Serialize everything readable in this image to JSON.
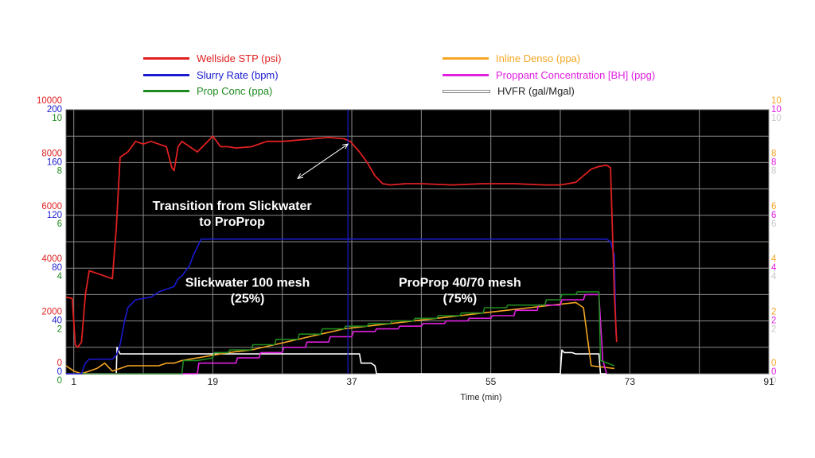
{
  "legend": [
    {
      "key": "stp",
      "label": "Wellside STP (psi)",
      "color": "#e02020"
    },
    {
      "key": "rate",
      "label": "Slurry Rate (bpm)",
      "color": "#1a1ad0"
    },
    {
      "key": "conc",
      "label": "Prop Conc (ppa)",
      "color": "#1f8a1f"
    },
    {
      "key": "denso",
      "label": "Inline Denso (ppa)",
      "color": "#f5a623"
    },
    {
      "key": "bh",
      "label": "Proppant Concentration [BH] (ppg)",
      "color": "#e020e0"
    },
    {
      "key": "hvfr",
      "label": "HVFR (gal/Mgal)",
      "color": "#ffffff"
    }
  ],
  "chart_data": {
    "type": "line",
    "xlabel": "Time (min)",
    "xlim": [
      0,
      91
    ],
    "x_ticks": [
      "1",
      "19",
      "37",
      "55",
      "73",
      "91"
    ],
    "x_tick_values": [
      1,
      19,
      37,
      55,
      73,
      91
    ],
    "grid": true,
    "background": "#000000",
    "left_axes": [
      {
        "key": "stp",
        "color": "#e02020",
        "ylim": [
          0,
          10000
        ],
        "ticks": [
          "0",
          "2000",
          "4000",
          "6000",
          "8000",
          "10000"
        ]
      },
      {
        "key": "rate",
        "color": "#1a1ad0",
        "ylim": [
          0,
          200
        ],
        "ticks": [
          "0",
          "40",
          "80",
          "120",
          "160",
          "200"
        ]
      },
      {
        "key": "conc",
        "color": "#1f8a1f",
        "ylim": [
          0,
          10
        ],
        "ticks": [
          "0",
          "2",
          "4",
          "6",
          "8",
          "10"
        ]
      }
    ],
    "right_axes": [
      {
        "key": "denso",
        "color": "#f5a623",
        "ylim": [
          0,
          10
        ],
        "ticks": [
          "0",
          "2",
          "4",
          "6",
          "8",
          "10"
        ]
      },
      {
        "key": "bh",
        "color": "#e020e0",
        "ylim": [
          0,
          10
        ],
        "ticks": [
          "0",
          "2",
          "4",
          "6",
          "8",
          "10"
        ]
      },
      {
        "key": "hvfr",
        "color": "#c8c8c8",
        "ylim": [
          0,
          10
        ],
        "ticks": [
          "0",
          "2",
          "4",
          "6",
          "8",
          "10"
        ]
      }
    ],
    "annotations": [
      {
        "text": "Transition from Slickwater\nto ProProp",
        "x": 21.5,
        "y_frac": 0.62
      },
      {
        "text": "Slickwater 100 mesh\n(25%)",
        "x": 23.5,
        "y_frac": 0.33
      },
      {
        "text": "ProProp 40/70 mesh\n(75%)",
        "x": 51,
        "y_frac": 0.33
      }
    ],
    "arrow": {
      "x1": 30,
      "y1_frac": 0.74,
      "x2": 36.5,
      "y2_frac": 0.87
    },
    "marker_line_x": 36.5,
    "series": [
      {
        "name": "Wellside STP (psi)",
        "key": "stp",
        "axis": "stp",
        "color": "#e02020",
        "x": [
          0,
          0.8,
          1.2,
          1.5,
          2,
          2.5,
          3,
          4,
          5,
          6,
          6.5,
          7,
          8,
          9,
          10,
          11,
          12,
          13,
          13.7,
          14,
          14.5,
          15,
          16,
          17,
          18,
          19,
          20,
          21,
          22,
          24,
          26,
          28,
          30,
          32,
          34,
          36,
          36.8,
          38,
          39,
          40,
          41,
          42,
          44,
          46,
          50,
          54,
          58,
          62,
          64,
          65,
          66,
          67,
          68,
          69,
          70,
          70.5,
          71,
          71.3
        ],
        "y": [
          2900,
          2850,
          1100,
          1000,
          1200,
          3000,
          3900,
          3800,
          3700,
          3600,
          5500,
          8200,
          8400,
          8800,
          8700,
          8800,
          8700,
          8600,
          7800,
          7700,
          8600,
          8800,
          8600,
          8400,
          8700,
          9000,
          8600,
          8600,
          8550,
          8600,
          8800,
          8800,
          8850,
          8900,
          8950,
          8900,
          8800,
          8400,
          8000,
          7500,
          7200,
          7150,
          7200,
          7200,
          7150,
          7200,
          7200,
          7150,
          7150,
          7200,
          7250,
          7500,
          7750,
          7850,
          7900,
          7800,
          3000,
          1200
        ]
      },
      {
        "name": "Slurry Rate (bpm)",
        "key": "rate",
        "axis": "rate",
        "color": "#1a1ad0",
        "x": [
          0,
          2,
          2.5,
          3,
          6,
          6.5,
          7,
          7.5,
          8,
          9,
          11,
          12,
          13,
          14,
          14.5,
          15,
          15.5,
          16,
          16.5,
          17,
          17.5,
          18,
          20,
          30,
          40,
          50,
          60,
          70,
          70.5,
          71,
          71.2
        ],
        "y": [
          0,
          0,
          8,
          11,
          11,
          14,
          22,
          38,
          50,
          56,
          58,
          62,
          64,
          66,
          72,
          74,
          78,
          82,
          90,
          96,
          102,
          102,
          102,
          102,
          102,
          102,
          102,
          102,
          100,
          90,
          30
        ]
      },
      {
        "name": "Prop Conc (ppa)",
        "key": "conc",
        "axis": "conc",
        "color": "#1f8a1f",
        "x": [
          0,
          15,
          15.2,
          17,
          19,
          19.2,
          21,
          21.2,
          24,
          24.2,
          27,
          27.2,
          30,
          30.2,
          33,
          33.2,
          36,
          36.2,
          39,
          39.2,
          42,
          42.2,
          45,
          45.2,
          48,
          48.2,
          51,
          51.2,
          54,
          54.2,
          57,
          57.2,
          62,
          62.2,
          64,
          64.2,
          66,
          66.2,
          69,
          69.2,
          71
        ],
        "y": [
          0,
          0,
          0.5,
          0.5,
          0.6,
          0.8,
          0.8,
          0.9,
          0.9,
          1.1,
          1.1,
          1.3,
          1.3,
          1.5,
          1.5,
          1.7,
          1.7,
          1.8,
          1.8,
          1.9,
          1.9,
          2.0,
          2.0,
          2.1,
          2.1,
          2.2,
          2.2,
          2.3,
          2.3,
          2.5,
          2.5,
          2.6,
          2.6,
          2.8,
          2.8,
          3.0,
          3.0,
          3.1,
          3.1,
          0.5,
          0.3
        ]
      },
      {
        "name": "Inline Denso (ppa)",
        "key": "denso",
        "axis": "denso",
        "color": "#f5a623",
        "x": [
          0,
          1,
          2,
          4,
          5,
          6,
          8,
          10,
          12,
          13,
          14,
          15,
          17,
          19,
          21,
          24,
          27,
          30,
          33,
          36,
          39,
          42,
          45,
          48,
          51,
          54,
          57,
          60,
          63,
          66,
          67,
          68,
          71
        ],
        "y": [
          0.3,
          0.1,
          0,
          0.2,
          0.4,
          0.1,
          0.3,
          0.3,
          0.3,
          0.4,
          0.4,
          0.5,
          0.6,
          0.7,
          0.8,
          0.9,
          1.1,
          1.3,
          1.5,
          1.7,
          1.8,
          1.9,
          2.0,
          2.1,
          2.2,
          2.3,
          2.4,
          2.5,
          2.6,
          2.7,
          2.5,
          0.3,
          0.2
        ]
      },
      {
        "name": "Proppant Concentration [BH] (ppg)",
        "key": "bh",
        "axis": "bh",
        "color": "#e020e0",
        "x": [
          0,
          17,
          17.2,
          22,
          22.2,
          25,
          25.2,
          28,
          28.2,
          31,
          31.2,
          34,
          34.2,
          37,
          37.2,
          40,
          40.2,
          43,
          43.2,
          46,
          46.2,
          49,
          49.2,
          52,
          52.2,
          55,
          55.2,
          58,
          58.2,
          61,
          61.2,
          64,
          64.2,
          67,
          67.2,
          69,
          69.5,
          70
        ],
        "y": [
          0,
          0,
          0.4,
          0.4,
          0.6,
          0.6,
          0.8,
          0.8,
          1.0,
          1.0,
          1.2,
          1.2,
          1.4,
          1.4,
          1.6,
          1.6,
          1.7,
          1.7,
          1.8,
          1.8,
          1.9,
          1.9,
          2.0,
          2.0,
          2.1,
          2.1,
          2.2,
          2.2,
          2.4,
          2.4,
          2.6,
          2.6,
          2.8,
          2.8,
          3.0,
          3.0,
          0.5,
          0
        ]
      },
      {
        "name": "HVFR (gal/Mgal)",
        "key": "hvfr",
        "axis": "hvfr",
        "color": "#ffffff",
        "x": [
          0,
          6.5,
          6.6,
          7,
          10,
          20,
          30,
          36,
          38,
          38.2,
          38.5,
          39,
          39.5,
          40,
          40.2,
          64,
          64.2,
          64.5,
          65,
          65.5,
          66,
          66.5,
          67,
          67.5,
          68,
          69,
          69.2,
          70
        ],
        "y": [
          0,
          0,
          1.0,
          0.75,
          0.75,
          0.75,
          0.75,
          0.75,
          0.75,
          0.4,
          0.4,
          0.4,
          0.4,
          0.3,
          0,
          0,
          0.9,
          0.8,
          0.8,
          0.8,
          0.75,
          0.75,
          0.75,
          0.75,
          0.75,
          0.75,
          0,
          0
        ]
      }
    ]
  }
}
